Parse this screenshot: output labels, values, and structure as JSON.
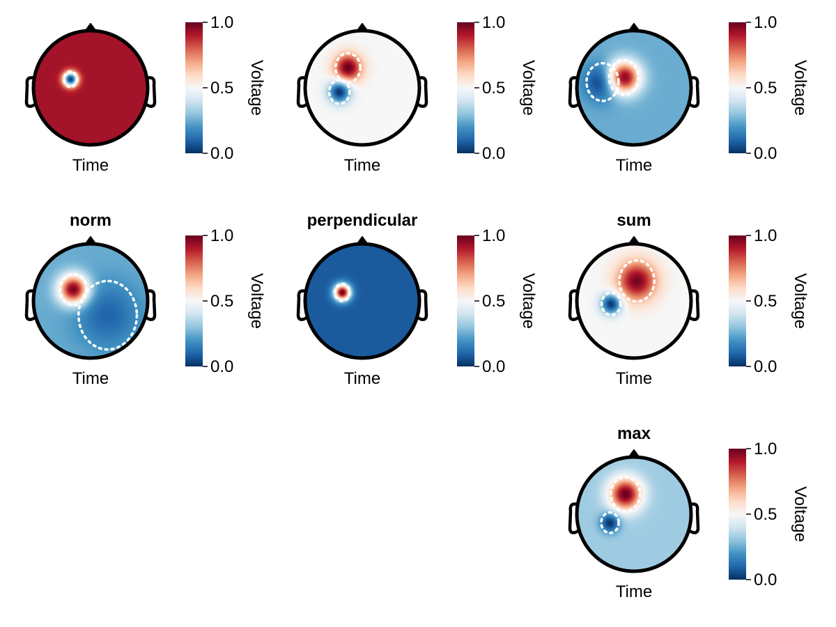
{
  "chart_data": {
    "type": "heatmap",
    "subtype": "eeg-topoplot-grid",
    "colormap": "RdBu (reversed): 0.0 blue, 0.5 white, 1.0 red",
    "colors": {
      "low": "#053061",
      "mid": "#f7f7f7",
      "high": "#67001f",
      "contour": "#ffffff",
      "head": "#000000"
    },
    "colorbar": {
      "label": "Voltage",
      "range": [
        0.0,
        1.0
      ],
      "ticks": [
        "0.0",
        "0.5",
        "1.0"
      ]
    },
    "panels": [
      {
        "id": "p1",
        "title": "",
        "xlabel": "Time",
        "background_value": 0.92,
        "blobs": [
          {
            "x": -0.35,
            "y": 0.15,
            "value": 0.02,
            "sigma": 0.09
          }
        ]
      },
      {
        "id": "p2",
        "title": "",
        "xlabel": "Time",
        "background_value": 0.5,
        "blobs": [
          {
            "x": -0.25,
            "y": 0.35,
            "value": 1.0,
            "sigma": 0.17
          },
          {
            "x": -0.4,
            "y": -0.07,
            "value": 0.0,
            "sigma": 0.14
          }
        ]
      },
      {
        "id": "p3",
        "title": "",
        "xlabel": "Time",
        "background_value": 0.25,
        "blobs": [
          {
            "x": -0.18,
            "y": 0.18,
            "value": 1.0,
            "sigma": 0.2
          },
          {
            "x": -0.55,
            "y": 0.1,
            "value": 0.0,
            "sigma": 0.22
          }
        ]
      },
      {
        "id": "p4",
        "title": "norm",
        "xlabel": "Time",
        "background_value": 0.25,
        "blobs": [
          {
            "x": -0.3,
            "y": 0.2,
            "value": 1.0,
            "sigma": 0.18
          },
          {
            "x": 0.3,
            "y": -0.25,
            "value": 0.1,
            "sigma": 0.4
          }
        ]
      },
      {
        "id": "p5",
        "title": "perpendicular",
        "xlabel": "Time",
        "background_value": 0.08,
        "blobs": [
          {
            "x": -0.35,
            "y": 0.15,
            "value": 1.0,
            "sigma": 0.1
          }
        ]
      },
      {
        "id": "p6",
        "title": "sum",
        "xlabel": "Time",
        "background_value": 0.5,
        "blobs": [
          {
            "x": 0.05,
            "y": 0.35,
            "value": 0.98,
            "sigma": 0.24
          },
          {
            "x": -0.4,
            "y": -0.05,
            "value": 0.0,
            "sigma": 0.13
          }
        ]
      },
      {
        "id": "p7",
        "title": "max",
        "xlabel": "Time",
        "background_value": 0.32,
        "blobs": [
          {
            "x": -0.15,
            "y": 0.35,
            "value": 1.0,
            "sigma": 0.2
          },
          {
            "x": -0.42,
            "y": -0.15,
            "value": 0.0,
            "sigma": 0.12
          }
        ]
      }
    ]
  }
}
